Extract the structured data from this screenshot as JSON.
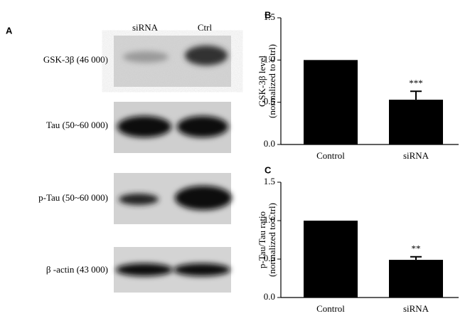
{
  "panel_a": {
    "label": "A",
    "columns": [
      "siRNA",
      "Ctrl"
    ],
    "rows": [
      "GSK-3β (46 000)",
      "Tau (50~60 000)",
      "p-Tau (50~60 000)",
      "β -actin (43 000)"
    ]
  },
  "chart_data": [
    {
      "type": "bar",
      "panel": "B",
      "ylabel": [
        "GSK-3β level",
        "(normalized to Ctrl)"
      ],
      "categories": [
        "Control",
        "siRNA"
      ],
      "values": [
        1.0,
        0.53
      ],
      "errors": [
        null,
        0.1
      ],
      "annotations": [
        null,
        "***"
      ],
      "color": "#000000",
      "ylim": [
        0,
        1.5
      ],
      "yticks": [
        {
          "value": 0,
          "label": "0.0"
        },
        0.5,
        {
          "value": 1,
          "label": "1.0"
        },
        1.5
      ]
    },
    {
      "type": "bar",
      "panel": "C",
      "ylabel": [
        "p-Tau/Tau ratio",
        "(normalized to Ctrl)"
      ],
      "categories": [
        "Control",
        "siRNA"
      ],
      "values": [
        1.0,
        0.49
      ],
      "errors": [
        null,
        0.04
      ],
      "annotations": [
        null,
        "**"
      ],
      "color": "#000000",
      "ylim": [
        0,
        1.5
      ],
      "yticks": [
        {
          "value": 0,
          "label": "0.0"
        },
        0.5,
        {
          "value": 1,
          "label": "1.0"
        },
        1.5
      ]
    }
  ]
}
